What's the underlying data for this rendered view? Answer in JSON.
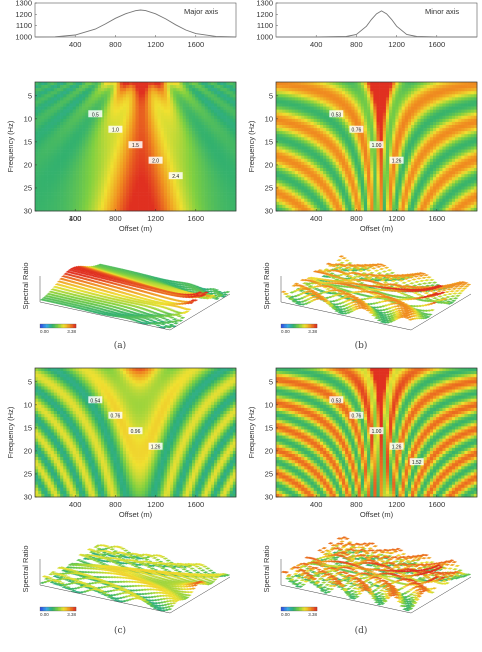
{
  "axis_labels": {
    "frequency": "Frequency (Hz)",
    "offset": "Offset (m)",
    "spectral": "Spectral Ratio"
  },
  "captions": [
    "(a)",
    "(b)",
    "(c)",
    "(d)"
  ],
  "colorbar_ticks": [
    "0.00",
    "3.38"
  ],
  "colormap": [
    "#3050e0",
    "#38a8e8",
    "#30b070",
    "#80d040",
    "#f0e030",
    "#f09020",
    "#e03020"
  ],
  "chart_data": [
    {
      "type": "line",
      "panel": "top-left",
      "legend": "Major axis",
      "yticks": [
        "1300",
        "1200",
        "1100",
        "1000"
      ],
      "xticks": [
        "400",
        "800",
        "1200",
        "1600"
      ],
      "ylim": [
        1000,
        1300
      ],
      "xlim": [
        0,
        2000
      ],
      "x": [
        0,
        200,
        400,
        600,
        700,
        800,
        900,
        1000,
        1050,
        1100,
        1200,
        1300,
        1400,
        1500,
        1600,
        1800,
        2000
      ],
      "y": [
        1000,
        1002,
        1018,
        1070,
        1115,
        1165,
        1205,
        1232,
        1238,
        1233,
        1205,
        1160,
        1108,
        1062,
        1030,
        1005,
        1000
      ]
    },
    {
      "type": "line",
      "panel": "top-right",
      "legend": "Minor axis",
      "yticks": [
        "1300",
        "1200",
        "1100",
        "1000"
      ],
      "xticks": [
        "400",
        "800",
        "1200",
        "1600"
      ],
      "ylim": [
        1000,
        1300
      ],
      "xlim": [
        0,
        2000
      ],
      "x": [
        0,
        400,
        700,
        800,
        900,
        950,
        1000,
        1050,
        1100,
        1150,
        1200,
        1300,
        1400,
        1600,
        2000
      ],
      "y": [
        1000,
        1000,
        1004,
        1022,
        1095,
        1155,
        1205,
        1230,
        1205,
        1155,
        1095,
        1022,
        1004,
        1000,
        1000
      ]
    },
    {
      "type": "heatmap",
      "panel": "a-map",
      "yticks": [
        "5",
        "10",
        "15",
        "20",
        "25",
        "30"
      ],
      "xticks": [
        "400",
        "800",
        "1200",
        "1600"
      ],
      "xticks_start": "100",
      "contour_labels": [
        "0.5",
        "1.0",
        "1.5",
        "2.0",
        "2.4"
      ]
    },
    {
      "type": "heatmap",
      "panel": "b-map",
      "yticks": [
        "5",
        "10",
        "15",
        "20",
        "25",
        "30"
      ],
      "xticks": [
        "400",
        "800",
        "1200",
        "1600"
      ],
      "contour_labels": [
        "0.53",
        "0.76",
        "1.00",
        "1.26"
      ]
    },
    {
      "type": "heatmap",
      "panel": "c-map",
      "yticks": [
        "5",
        "10",
        "15",
        "20",
        "25",
        "30"
      ],
      "xticks": [
        "400",
        "800",
        "1200",
        "1600"
      ],
      "contour_labels": [
        "0.54",
        "0.76",
        "0.96",
        "1.26"
      ]
    },
    {
      "type": "heatmap",
      "panel": "d-map",
      "yticks": [
        "5",
        "10",
        "15",
        "20",
        "25",
        "30"
      ],
      "xticks": [
        "400",
        "800",
        "1200",
        "1600"
      ],
      "contour_labels": [
        "0.53",
        "0.76",
        "1.00",
        "1.26",
        "1.52"
      ]
    }
  ]
}
